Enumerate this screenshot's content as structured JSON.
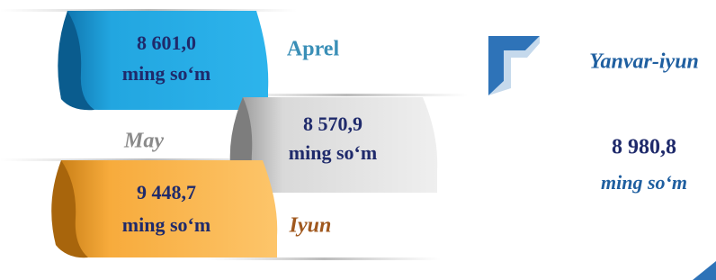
{
  "items": [
    {
      "value": "8 601,0",
      "unit": "ming so‘m",
      "month": "Aprel"
    },
    {
      "value": "8 570,9",
      "unit": "ming so‘m",
      "month": "May"
    },
    {
      "value": "9 448,7",
      "unit": "ming so‘m",
      "month": "Iyun"
    }
  ],
  "summary": {
    "period": "Yanvar-iyun",
    "value": "8 980,8",
    "unit": "ming so‘m"
  }
}
